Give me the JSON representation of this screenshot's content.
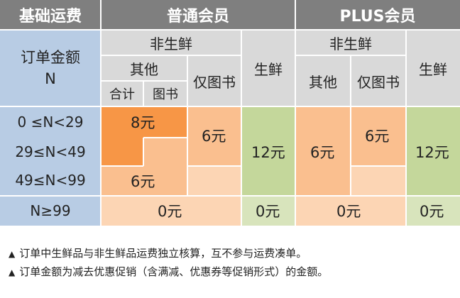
{
  "header": {
    "base_fee": "基础运费",
    "normal_member": "普通会员",
    "plus_member": "PLUS会员"
  },
  "subheader": {
    "order_amount": "订单金额",
    "n": "N",
    "non_fresh": "非生鲜",
    "other": "其他",
    "books_only": "仅图书",
    "fresh": "生鲜",
    "total": "合计",
    "books": "图书"
  },
  "ranges": [
    "0 ≤N<29",
    "29≤N<49",
    "49≤N<99",
    "N≥99"
  ],
  "normal": {
    "other_total_lt29": "8元",
    "other_29_99": "6元",
    "books_only_lt49": "6元",
    "fresh_lt99": "12元",
    "other_ge99": "0元",
    "fresh_ge99": "0元"
  },
  "plus": {
    "other_lt99": "6元",
    "books_only_lt49": "6元",
    "fresh_lt99": "12元",
    "other_ge99": "0元",
    "fresh_ge99": "0元"
  },
  "notes": {
    "marker": "▲",
    "note1": "订单中生鲜品与非生鲜品运费独立核算，互不参与运费凑单。",
    "note2": "订单金额为减去优惠促销（含满减、优惠券等促销形式）的金额。"
  }
}
